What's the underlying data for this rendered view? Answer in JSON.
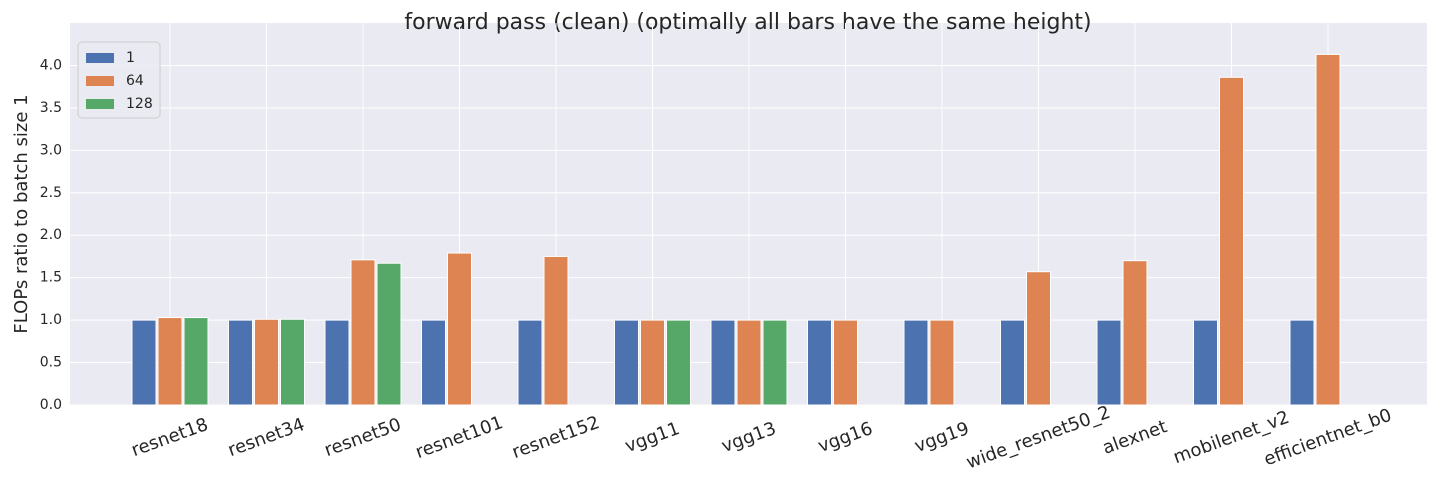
{
  "chart_data": {
    "type": "bar",
    "title": "forward pass (clean) (optimally all bars have the same height)",
    "y_label": "FLOPs ratio to batch size 1",
    "categories": [
      "resnet18",
      "resnet34",
      "resnet50",
      "resnet101",
      "resnet152",
      "vgg11",
      "vgg13",
      "vgg16",
      "vgg19",
      "wide_resnet50_2",
      "alexnet",
      "mobilenet_v2",
      "efficientnet_b0"
    ],
    "series": [
      {
        "name": "1",
        "color": "#4c72b0",
        "values": [
          1,
          1,
          1,
          1,
          1,
          1,
          1,
          1,
          1,
          1,
          1,
          1,
          1
        ]
      },
      {
        "name": "64",
        "color": "#dd8452",
        "values": [
          1.03,
          1.01,
          1.71,
          1.79,
          1.75,
          1,
          1,
          1,
          1,
          1.57,
          1.7,
          3.86,
          4.13
        ]
      },
      {
        "name": "128",
        "color": "#55a868",
        "values": [
          1.03,
          1.01,
          1.67,
          null,
          null,
          1,
          1,
          null,
          null,
          null,
          null,
          null,
          null
        ]
      }
    ],
    "ylim": [
      0,
      4.5
    ],
    "yticks": [
      {
        "value": 0,
        "label": "0.0"
      },
      0.5,
      {
        "value": 1,
        "label": "1.0"
      },
      1.5,
      {
        "value": 2,
        "label": "2.0"
      },
      2.5,
      {
        "value": 3,
        "label": "3.0"
      },
      3.5,
      {
        "value": 4,
        "label": "4.0"
      }
    ],
    "grid": true,
    "legend": "upper-left"
  }
}
